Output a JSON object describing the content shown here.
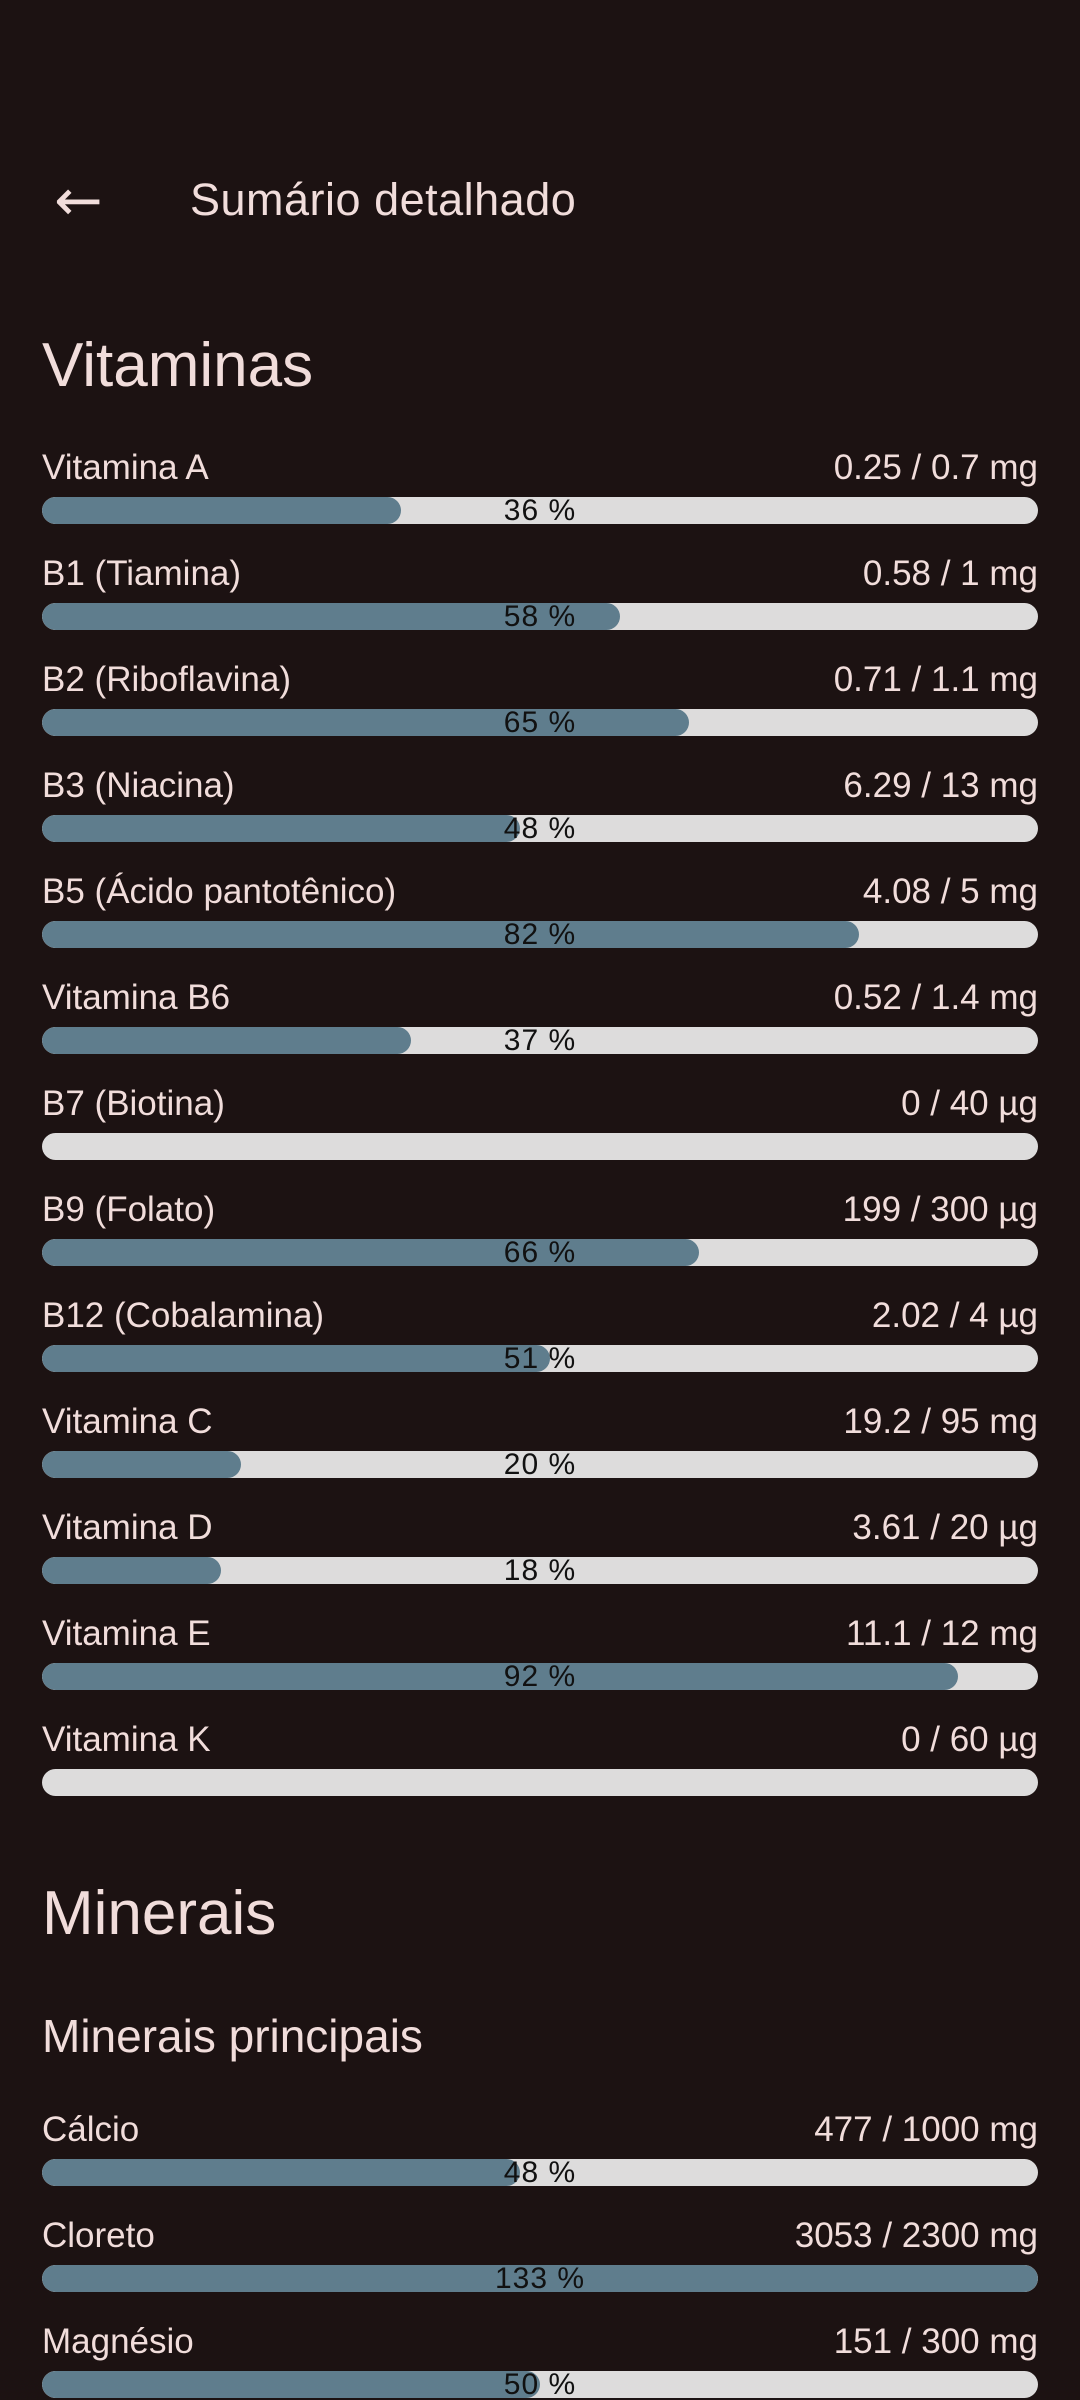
{
  "header": {
    "back_icon": "←",
    "title": "Sumário detalhado"
  },
  "colors": {
    "background": "#1c1212",
    "text": "#f1dddb",
    "bar_track": "#dddcdc",
    "bar_fill": "#5f7d8d",
    "percent_text": "#111111"
  },
  "sections": [
    {
      "heading": "Vitaminas",
      "subheading": "",
      "items": [
        {
          "label": "Vitamina A",
          "value": "0.25 / 0.7 mg",
          "percent": 36,
          "percent_label": "36 %"
        },
        {
          "label": "B1 (Tiamina)",
          "value": "0.58 / 1 mg",
          "percent": 58,
          "percent_label": "58 %"
        },
        {
          "label": "B2 (Riboflavina)",
          "value": "0.71 / 1.1 mg",
          "percent": 65,
          "percent_label": "65 %"
        },
        {
          "label": "B3 (Niacina)",
          "value": "6.29 / 13 mg",
          "percent": 48,
          "percent_label": "48 %"
        },
        {
          "label": "B5 (Ácido pantotênico)",
          "value": "4.08 / 5 mg",
          "percent": 82,
          "percent_label": "82 %"
        },
        {
          "label": "Vitamina B6",
          "value": "0.52 / 1.4 mg",
          "percent": 37,
          "percent_label": "37 %"
        },
        {
          "label": "B7 (Biotina)",
          "value": "0 / 40 µg",
          "percent": 0,
          "percent_label": ""
        },
        {
          "label": "B9 (Folato)",
          "value": "199 / 300 µg",
          "percent": 66,
          "percent_label": "66 %"
        },
        {
          "label": "B12 (Cobalamina)",
          "value": "2.02 / 4 µg",
          "percent": 51,
          "percent_label": "51 %"
        },
        {
          "label": "Vitamina C",
          "value": "19.2 / 95 mg",
          "percent": 20,
          "percent_label": "20 %"
        },
        {
          "label": "Vitamina D",
          "value": "3.61 / 20 µg",
          "percent": 18,
          "percent_label": "18 %"
        },
        {
          "label": "Vitamina E",
          "value": "11.1 / 12 mg",
          "percent": 92,
          "percent_label": "92 %"
        },
        {
          "label": "Vitamina K",
          "value": "0 / 60 µg",
          "percent": 0,
          "percent_label": ""
        }
      ]
    },
    {
      "heading": "Minerais",
      "subheading": "Minerais principais",
      "items": [
        {
          "label": "Cálcio",
          "value": "477 / 1000 mg",
          "percent": 48,
          "percent_label": "48 %"
        },
        {
          "label": "Cloreto",
          "value": "3053 / 2300 mg",
          "percent": 133,
          "percent_label": "133 %"
        },
        {
          "label": "Magnésio",
          "value": "151 / 300 mg",
          "percent": 50,
          "percent_label": "50 %"
        }
      ]
    }
  ]
}
